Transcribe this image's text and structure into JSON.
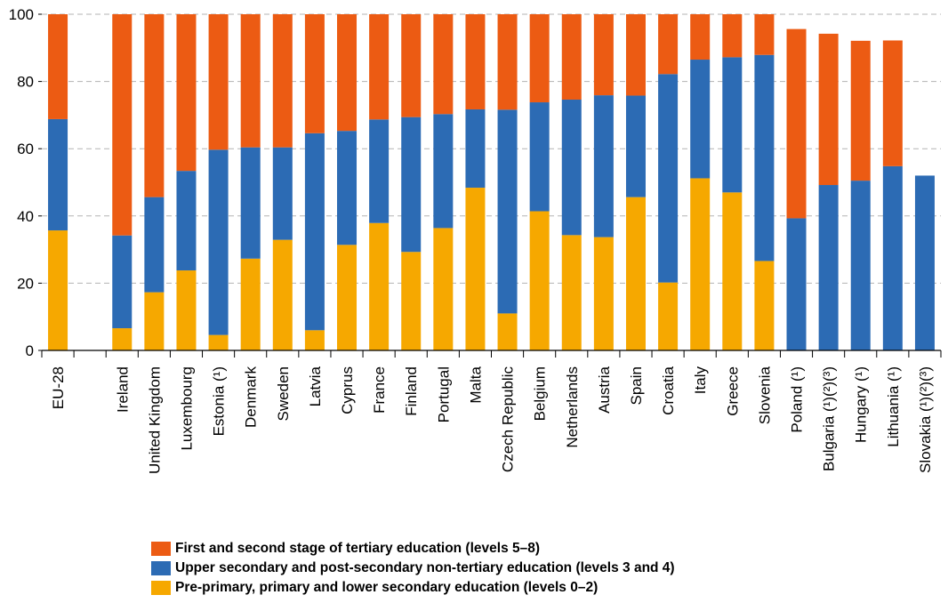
{
  "chart_data": {
    "type": "bar",
    "stacked": true,
    "categories": [
      "EU-28",
      "",
      "Ireland",
      "United Kingdom",
      "Luxembourg",
      "Estonia (¹)",
      "Denmark",
      "Sweden",
      "Latvia",
      "Cyprus",
      "France",
      "Finland",
      "Portugal",
      "Malta",
      "Czech Republic",
      "Belgium",
      "Netherlands",
      "Austria",
      "Spain",
      "Croatia",
      "Italy",
      "Greece",
      "Slovenia",
      "Poland (¹)",
      "Bulgaria (¹)(²)(³)",
      "Hungary (¹)",
      "Lithuania (¹)",
      "Slovakia (¹)(²)(³)"
    ],
    "series": [
      {
        "name": "Pre-primary, primary and lower secondary education (levels 0–2)",
        "color": "#f6a800",
        "values": [
          35.7,
          null,
          6.6,
          17.3,
          23.8,
          4.6,
          27.3,
          32.9,
          6.0,
          31.4,
          37.9,
          29.3,
          36.4,
          48.4,
          11.0,
          41.4,
          34.3,
          33.7,
          45.6,
          20.2,
          51.2,
          47.0,
          26.6,
          0,
          0,
          0,
          0,
          0
        ]
      },
      {
        "name": "Upper secondary and post-secondary non-tertiary education (levels 3 and 4)",
        "color": "#2c6bb4",
        "values": [
          33.1,
          null,
          27.6,
          28.3,
          29.6,
          55.1,
          33.1,
          27.5,
          58.6,
          33.9,
          30.8,
          40.1,
          33.9,
          23.3,
          60.6,
          32.4,
          40.3,
          42.2,
          30.2,
          62.0,
          35.3,
          40.2,
          61.3,
          39.3,
          49.2,
          50.5,
          54.8,
          52.0
        ]
      },
      {
        "name": "First and second stage of tertiary education (levels 5–8)",
        "color": "#ec5b13",
        "values": [
          31.2,
          null,
          65.8,
          54.4,
          46.6,
          40.3,
          39.6,
          39.6,
          35.4,
          34.7,
          31.3,
          30.6,
          29.7,
          28.3,
          28.4,
          26.2,
          25.4,
          24.1,
          24.2,
          17.8,
          13.5,
          12.8,
          12.1,
          56.3,
          45.0,
          41.6,
          37.4,
          0
        ]
      }
    ],
    "ylim": [
      0,
      100
    ],
    "yticks": [
      0,
      20,
      40,
      60,
      80,
      100
    ],
    "grid": true,
    "legend_position": "bottom",
    "legend_order": [
      2,
      1,
      0
    ]
  }
}
